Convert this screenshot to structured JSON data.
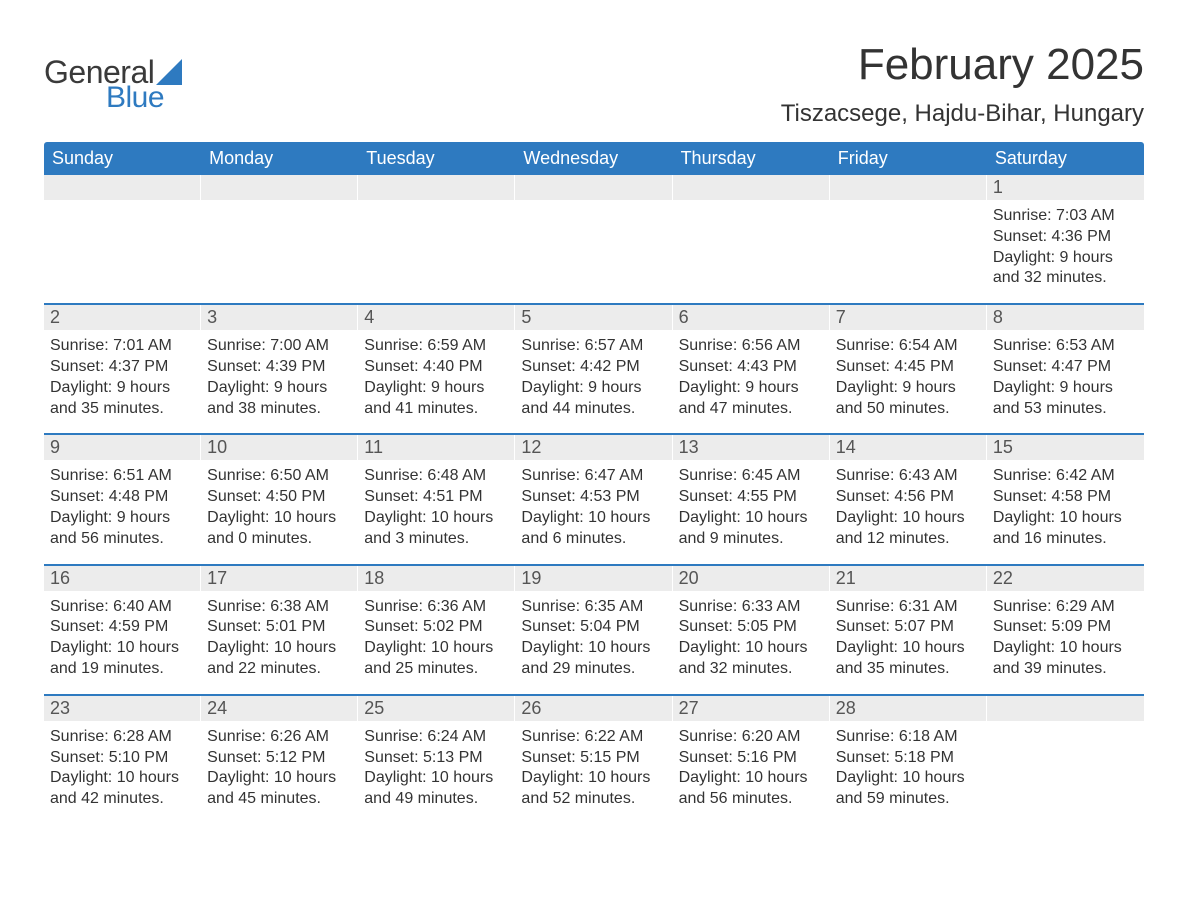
{
  "logo": {
    "text1": "General",
    "text2": "Blue"
  },
  "title": "February 2025",
  "location": "Tiszacsege, Hajdu-Bihar, Hungary",
  "colors": {
    "brand_blue": "#2e7ac0",
    "row_gray": "#ececec",
    "text": "#333333",
    "background": "#ffffff"
  },
  "weekdays": [
    "Sunday",
    "Monday",
    "Tuesday",
    "Wednesday",
    "Thursday",
    "Friday",
    "Saturday"
  ],
  "weeks": [
    [
      {
        "empty": true
      },
      {
        "empty": true
      },
      {
        "empty": true
      },
      {
        "empty": true
      },
      {
        "empty": true
      },
      {
        "empty": true
      },
      {
        "n": "1",
        "sunrise": "Sunrise: 7:03 AM",
        "sunset": "Sunset: 4:36 PM",
        "daylight": "Daylight: 9 hours and 32 minutes."
      }
    ],
    [
      {
        "n": "2",
        "sunrise": "Sunrise: 7:01 AM",
        "sunset": "Sunset: 4:37 PM",
        "daylight": "Daylight: 9 hours and 35 minutes."
      },
      {
        "n": "3",
        "sunrise": "Sunrise: 7:00 AM",
        "sunset": "Sunset: 4:39 PM",
        "daylight": "Daylight: 9 hours and 38 minutes."
      },
      {
        "n": "4",
        "sunrise": "Sunrise: 6:59 AM",
        "sunset": "Sunset: 4:40 PM",
        "daylight": "Daylight: 9 hours and 41 minutes."
      },
      {
        "n": "5",
        "sunrise": "Sunrise: 6:57 AM",
        "sunset": "Sunset: 4:42 PM",
        "daylight": "Daylight: 9 hours and 44 minutes."
      },
      {
        "n": "6",
        "sunrise": "Sunrise: 6:56 AM",
        "sunset": "Sunset: 4:43 PM",
        "daylight": "Daylight: 9 hours and 47 minutes."
      },
      {
        "n": "7",
        "sunrise": "Sunrise: 6:54 AM",
        "sunset": "Sunset: 4:45 PM",
        "daylight": "Daylight: 9 hours and 50 minutes."
      },
      {
        "n": "8",
        "sunrise": "Sunrise: 6:53 AM",
        "sunset": "Sunset: 4:47 PM",
        "daylight": "Daylight: 9 hours and 53 minutes."
      }
    ],
    [
      {
        "n": "9",
        "sunrise": "Sunrise: 6:51 AM",
        "sunset": "Sunset: 4:48 PM",
        "daylight": "Daylight: 9 hours and 56 minutes."
      },
      {
        "n": "10",
        "sunrise": "Sunrise: 6:50 AM",
        "sunset": "Sunset: 4:50 PM",
        "daylight": "Daylight: 10 hours and 0 minutes."
      },
      {
        "n": "11",
        "sunrise": "Sunrise: 6:48 AM",
        "sunset": "Sunset: 4:51 PM",
        "daylight": "Daylight: 10 hours and 3 minutes."
      },
      {
        "n": "12",
        "sunrise": "Sunrise: 6:47 AM",
        "sunset": "Sunset: 4:53 PM",
        "daylight": "Daylight: 10 hours and 6 minutes."
      },
      {
        "n": "13",
        "sunrise": "Sunrise: 6:45 AM",
        "sunset": "Sunset: 4:55 PM",
        "daylight": "Daylight: 10 hours and 9 minutes."
      },
      {
        "n": "14",
        "sunrise": "Sunrise: 6:43 AM",
        "sunset": "Sunset: 4:56 PM",
        "daylight": "Daylight: 10 hours and 12 minutes."
      },
      {
        "n": "15",
        "sunrise": "Sunrise: 6:42 AM",
        "sunset": "Sunset: 4:58 PM",
        "daylight": "Daylight: 10 hours and 16 minutes."
      }
    ],
    [
      {
        "n": "16",
        "sunrise": "Sunrise: 6:40 AM",
        "sunset": "Sunset: 4:59 PM",
        "daylight": "Daylight: 10 hours and 19 minutes."
      },
      {
        "n": "17",
        "sunrise": "Sunrise: 6:38 AM",
        "sunset": "Sunset: 5:01 PM",
        "daylight": "Daylight: 10 hours and 22 minutes."
      },
      {
        "n": "18",
        "sunrise": "Sunrise: 6:36 AM",
        "sunset": "Sunset: 5:02 PM",
        "daylight": "Daylight: 10 hours and 25 minutes."
      },
      {
        "n": "19",
        "sunrise": "Sunrise: 6:35 AM",
        "sunset": "Sunset: 5:04 PM",
        "daylight": "Daylight: 10 hours and 29 minutes."
      },
      {
        "n": "20",
        "sunrise": "Sunrise: 6:33 AM",
        "sunset": "Sunset: 5:05 PM",
        "daylight": "Daylight: 10 hours and 32 minutes."
      },
      {
        "n": "21",
        "sunrise": "Sunrise: 6:31 AM",
        "sunset": "Sunset: 5:07 PM",
        "daylight": "Daylight: 10 hours and 35 minutes."
      },
      {
        "n": "22",
        "sunrise": "Sunrise: 6:29 AM",
        "sunset": "Sunset: 5:09 PM",
        "daylight": "Daylight: 10 hours and 39 minutes."
      }
    ],
    [
      {
        "n": "23",
        "sunrise": "Sunrise: 6:28 AM",
        "sunset": "Sunset: 5:10 PM",
        "daylight": "Daylight: 10 hours and 42 minutes."
      },
      {
        "n": "24",
        "sunrise": "Sunrise: 6:26 AM",
        "sunset": "Sunset: 5:12 PM",
        "daylight": "Daylight: 10 hours and 45 minutes."
      },
      {
        "n": "25",
        "sunrise": "Sunrise: 6:24 AM",
        "sunset": "Sunset: 5:13 PM",
        "daylight": "Daylight: 10 hours and 49 minutes."
      },
      {
        "n": "26",
        "sunrise": "Sunrise: 6:22 AM",
        "sunset": "Sunset: 5:15 PM",
        "daylight": "Daylight: 10 hours and 52 minutes."
      },
      {
        "n": "27",
        "sunrise": "Sunrise: 6:20 AM",
        "sunset": "Sunset: 5:16 PM",
        "daylight": "Daylight: 10 hours and 56 minutes."
      },
      {
        "n": "28",
        "sunrise": "Sunrise: 6:18 AM",
        "sunset": "Sunset: 5:18 PM",
        "daylight": "Daylight: 10 hours and 59 minutes."
      },
      {
        "empty": true
      }
    ]
  ]
}
